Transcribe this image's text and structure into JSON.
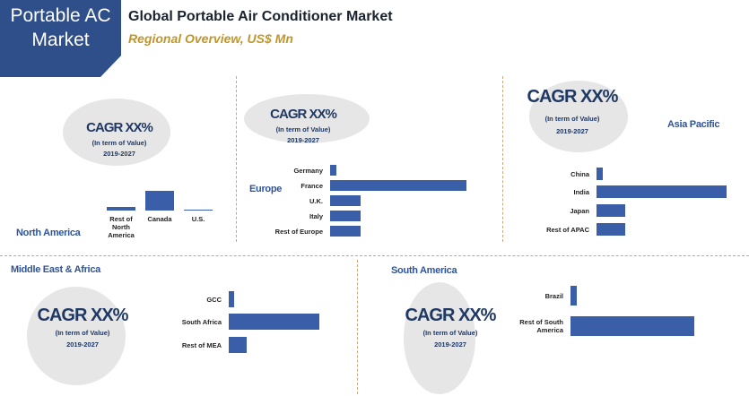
{
  "header": {
    "badge_lines": [
      "Portable AC",
      "Market"
    ],
    "title": "Global Portable Air Conditioner Market",
    "subtitle": "Regional Overview, US$ Mn"
  },
  "chart_data": [
    {
      "type": "bar",
      "orientation": "vertical",
      "title": "North America",
      "cagr": "CAGR XX%",
      "cagr_note": "(In term of Value)",
      "period": "2019-2027",
      "color": "#3a5ea8",
      "categories": [
        "Rest of North America",
        "Canada",
        "U.S."
      ],
      "values": [
        4,
        22,
        1.5
      ]
    },
    {
      "type": "bar",
      "orientation": "horizontal",
      "title": "Europe",
      "cagr": "CAGR XX%",
      "cagr_note": "(In term of Value)",
      "period": "2019-2027",
      "color": "#3a5ea8",
      "categories": [
        "Germany",
        "France",
        "U.K.",
        "Italy",
        "Rest of Europe"
      ],
      "values": [
        7,
        152,
        34,
        34,
        34
      ]
    },
    {
      "type": "bar",
      "orientation": "horizontal",
      "title": "Asia Pacific",
      "cagr": "CAGR XX%",
      "cagr_note": "(In term of Value)",
      "period": "2019-2027",
      "color": "#3a5ea8",
      "categories": [
        "China",
        "India",
        "Japan",
        "Rest of APAC"
      ],
      "values": [
        7,
        145,
        32,
        32
      ]
    },
    {
      "type": "bar",
      "orientation": "horizontal",
      "title": "Middle East & Africa",
      "cagr": "CAGR XX%",
      "cagr_note": "(In term of Value)",
      "period": "2019-2027",
      "color": "#3a5ea8",
      "categories": [
        "GCC",
        "South Africa",
        "Rest of MEA"
      ],
      "values": [
        6,
        101,
        20
      ]
    },
    {
      "type": "bar",
      "orientation": "horizontal",
      "title": "South America",
      "cagr": "CAGR XX%",
      "cagr_note": "(In term of Value)",
      "period": "2019-2027",
      "color": "#3a5ea8",
      "categories": [
        "Brazil",
        "Rest of South America"
      ],
      "values": [
        7,
        138
      ]
    }
  ]
}
